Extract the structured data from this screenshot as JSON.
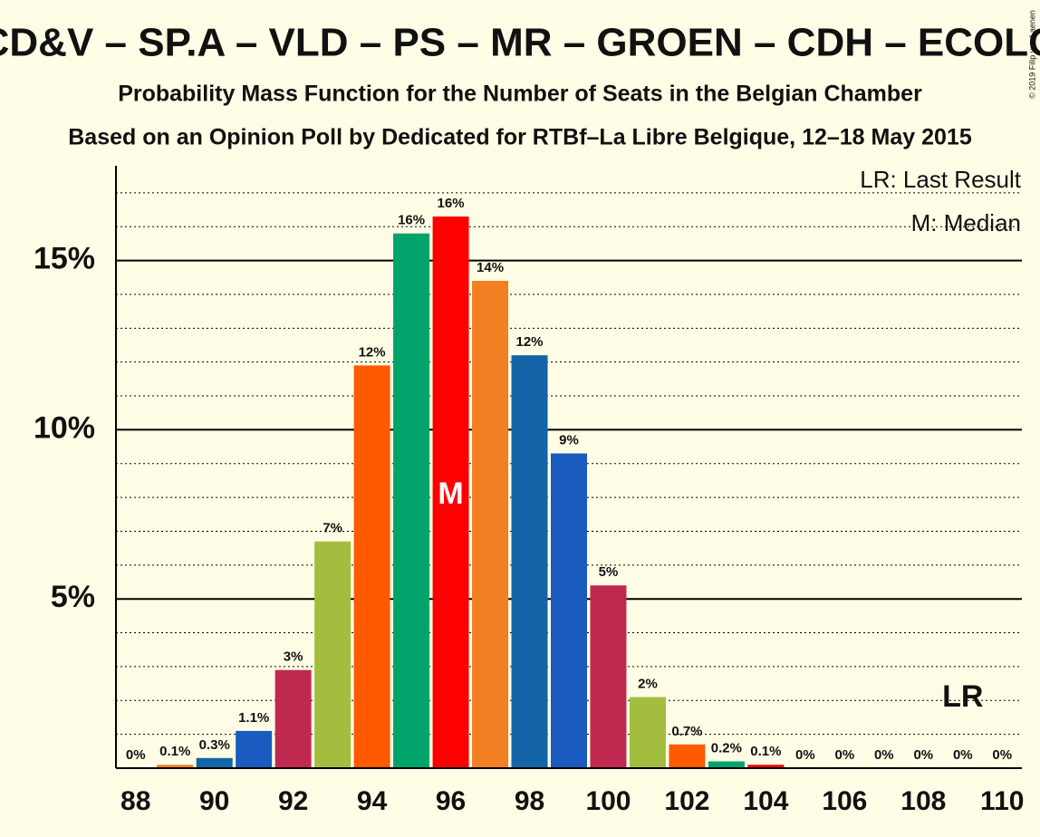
{
  "chart_data": {
    "type": "bar",
    "title": "CD&V – SP.A – VLD – PS – MR – GROEN – CDH – ECOLO",
    "subtitle": "Probability Mass Function for the Number of Seats in the Belgian Chamber",
    "subtitle2": "Based on an Opinion Poll by Dedicated for RTBf–La Libre Belgique, 12–18 May 2015",
    "copyright": "© 2019 Filip van Laenen",
    "x": [
      88,
      89,
      90,
      91,
      92,
      93,
      94,
      95,
      96,
      97,
      98,
      99,
      100,
      101,
      102,
      103,
      104,
      105,
      106,
      107,
      108,
      109,
      110
    ],
    "values": [
      0,
      0.1,
      0.3,
      1.1,
      2.9,
      6.7,
      11.9,
      15.8,
      16.3,
      14.4,
      12.2,
      9.3,
      5.4,
      2.1,
      0.7,
      0.2,
      0.1,
      0,
      0,
      0,
      0,
      0,
      0
    ],
    "value_labels": [
      "0%",
      "0.1%",
      "0.3%",
      "1.1%",
      "3%",
      "7%",
      "12%",
      "16%",
      "16%",
      "14%",
      "12%",
      "9%",
      "5%",
      "2%",
      "0.7%",
      "0.2%",
      "0.1%",
      "0%",
      "0%",
      "0%",
      "0%",
      "0%",
      "0%"
    ],
    "colors": [
      "#ff0000",
      "#f28022",
      "#1464a8",
      "#1a5bbf",
      "#c0294f",
      "#a3be3f",
      "#ff5a00",
      "#00a36a",
      "#ff0000",
      "#f28022",
      "#1464a8",
      "#1a5bbf",
      "#c0294f",
      "#a3be3f",
      "#ff5a00",
      "#00a36a",
      "#ff0000",
      "#f28022",
      "#1464a8",
      "#1a5bbf",
      "#c0294f",
      "#a3be3f",
      "#ff5a00"
    ],
    "xlim": [
      87.5,
      110.5
    ],
    "xticks": [
      88,
      90,
      92,
      94,
      96,
      98,
      100,
      102,
      104,
      106,
      108,
      110
    ],
    "ylim": [
      0,
      17.8
    ],
    "yticks": [
      {
        "value": 5,
        "label": "5%"
      },
      {
        "value": 10,
        "label": "10%"
      },
      {
        "value": 15,
        "label": "15%"
      }
    ],
    "minor_yticks": [
      1,
      2,
      3,
      4,
      6,
      7,
      8,
      9,
      11,
      12,
      13,
      14,
      16,
      17
    ],
    "grid": true,
    "median": 96,
    "median_marker": "M",
    "last_result": 109,
    "last_result_marker": "LR",
    "legend": [
      "LR: Last Result",
      "M: Median"
    ]
  }
}
